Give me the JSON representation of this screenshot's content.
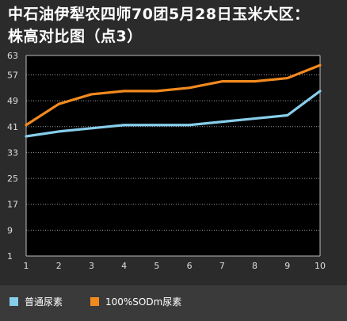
{
  "title": {
    "line1": "中石油伊犁农四师70团5月28日玉米大区：",
    "line2": "株高对比图（点3）"
  },
  "chart_data": {
    "type": "line",
    "title": "中石油伊犁农四师70团5月28日玉米大区：株高对比图（点3）",
    "x": [
      1,
      2,
      3,
      4,
      5,
      6,
      7,
      8,
      9,
      10
    ],
    "yticks": [
      1,
      9,
      17,
      25,
      33,
      41,
      49,
      57,
      63
    ],
    "ylim": [
      1,
      63
    ],
    "xlim": [
      1,
      10
    ],
    "grid": true,
    "legend_position": "bottom",
    "series": [
      {
        "name": "普通尿素",
        "color": "#87ceeb",
        "values": [
          38,
          39.5,
          40.5,
          41.5,
          41.5,
          41.5,
          42.5,
          43.5,
          44.5,
          52
        ]
      },
      {
        "name": "100%SODm尿素",
        "color": "#f28a1f",
        "values": [
          41.5,
          48,
          51,
          52,
          52,
          53,
          55,
          55,
          56,
          60
        ]
      }
    ]
  }
}
